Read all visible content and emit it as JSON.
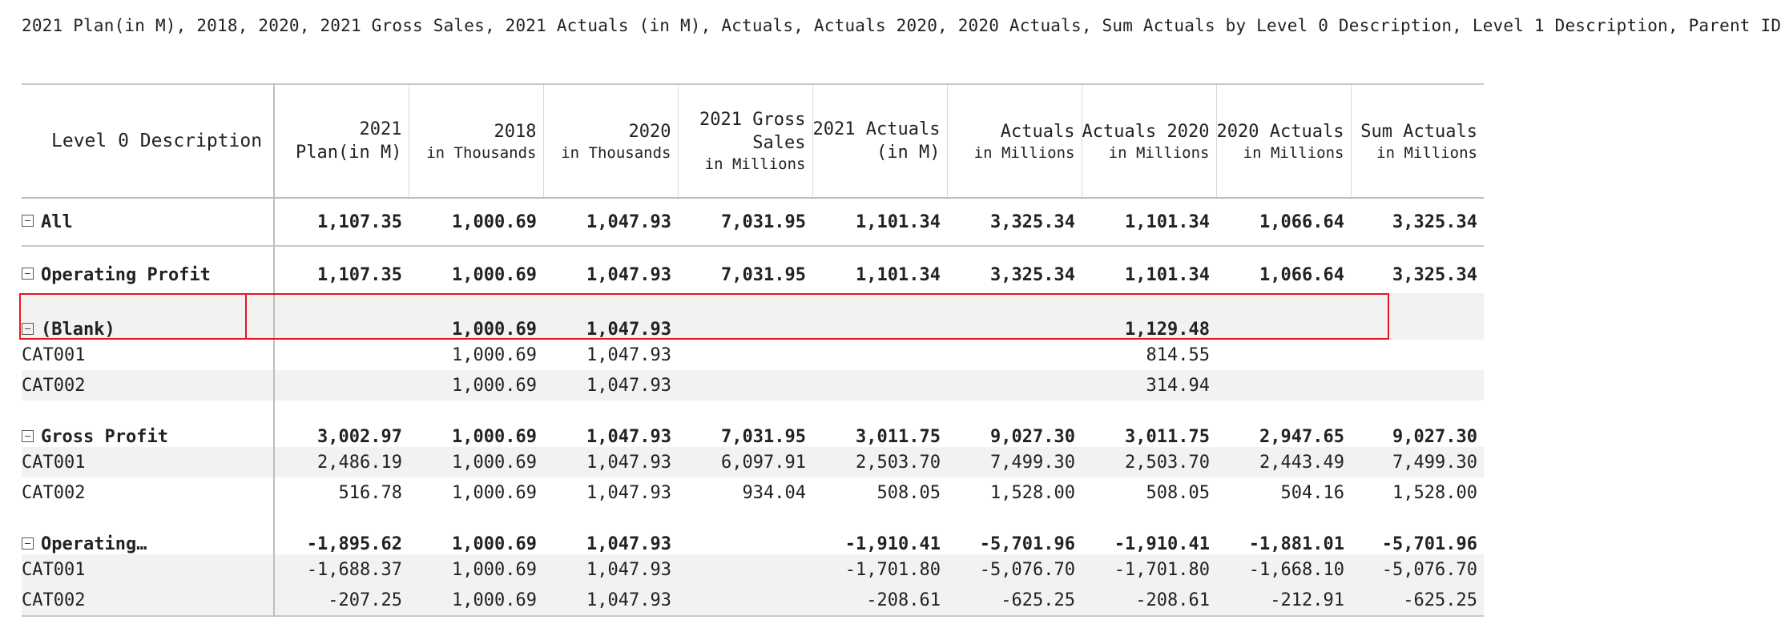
{
  "page": {
    "title": "2021 Plan(in M), 2018, 2020, 2021 Gross Sales, 2021 Actuals (in M), Actuals, Actuals 2020, 2020 Actuals, Sum Actuals by Level 0 Description, Level 1 Description, Parent ID"
  },
  "table": {
    "columns": [
      {
        "title": "Level 0 Description",
        "sub": ""
      },
      {
        "title": "2021 Plan(in M)",
        "sub": ""
      },
      {
        "title": "2018",
        "sub": "in Thousands"
      },
      {
        "title": "2020",
        "sub": "in Thousands"
      },
      {
        "title": "2021 Gross Sales",
        "sub": "in Millions"
      },
      {
        "title": "2021 Actuals (in M)",
        "sub": ""
      },
      {
        "title": "Actuals",
        "sub": "in Millions"
      },
      {
        "title": "Actuals 2020",
        "sub": "in Millions"
      },
      {
        "title": "2020 Actuals",
        "sub": "in Millions"
      },
      {
        "title": "Sum Actuals",
        "sub": "in Millions"
      }
    ],
    "rows": [
      {
        "label": "All",
        "values": [
          "1,107.35",
          "1,000.69",
          "1,047.93",
          "7,031.95",
          "1,101.34",
          "3,325.34",
          "1,101.34",
          "1,066.64",
          "3,325.34"
        ]
      },
      {
        "label": "Operating Profit",
        "values": [
          "1,107.35",
          "1,000.69",
          "1,047.93",
          "7,031.95",
          "1,101.34",
          "3,325.34",
          "1,101.34",
          "1,066.64",
          "3,325.34"
        ]
      },
      {
        "label": "(Blank)",
        "values": [
          "",
          "1,000.69",
          "1,047.93",
          "",
          "",
          "",
          "1,129.48",
          "",
          ""
        ]
      },
      {
        "label": "CAT001",
        "values": [
          "",
          "1,000.69",
          "1,047.93",
          "",
          "",
          "",
          "814.55",
          "",
          ""
        ]
      },
      {
        "label": "CAT002",
        "values": [
          "",
          "1,000.69",
          "1,047.93",
          "",
          "",
          "",
          "314.94",
          "",
          ""
        ]
      },
      {
        "label": "Gross Profit",
        "values": [
          "3,002.97",
          "1,000.69",
          "1,047.93",
          "7,031.95",
          "3,011.75",
          "9,027.30",
          "3,011.75",
          "2,947.65",
          "9,027.30"
        ]
      },
      {
        "label": "CAT001",
        "values": [
          "2,486.19",
          "1,000.69",
          "1,047.93",
          "6,097.91",
          "2,503.70",
          "7,499.30",
          "2,503.70",
          "2,443.49",
          "7,499.30"
        ]
      },
      {
        "label": "CAT002",
        "values": [
          "516.78",
          "1,000.69",
          "1,047.93",
          "934.04",
          "508.05",
          "1,528.00",
          "508.05",
          "504.16",
          "1,528.00"
        ]
      },
      {
        "label": "Operating…",
        "values": [
          "-1,895.62",
          "1,000.69",
          "1,047.93",
          "",
          "-1,910.41",
          "-5,701.96",
          "-1,910.41",
          "-1,881.01",
          "-5,701.96"
        ]
      },
      {
        "label": "CAT001",
        "values": [
          "-1,688.37",
          "1,000.69",
          "1,047.93",
          "",
          "-1,701.80",
          "-5,076.70",
          "-1,701.80",
          "-1,668.10",
          "-5,076.70"
        ]
      },
      {
        "label": "CAT002",
        "values": [
          "-207.25",
          "1,000.69",
          "1,047.93",
          "",
          "-208.61",
          "-625.25",
          "-208.61",
          "-212.91",
          "-625.25"
        ]
      }
    ]
  },
  "colors": {
    "highlight": "#e8141c",
    "row_shade": "#f2f2f2",
    "grid_line": "#bdbdbd"
  },
  "icons": {
    "collapse": "minus-square-icon"
  }
}
